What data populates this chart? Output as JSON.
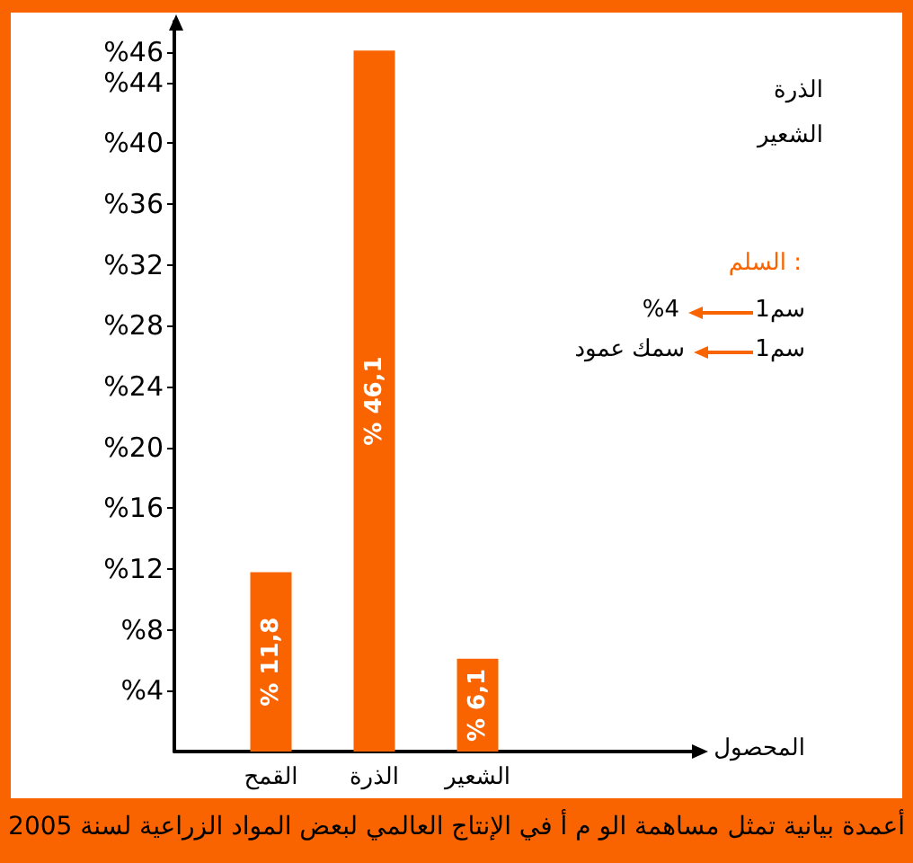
{
  "chart_data": {
    "type": "bar",
    "title": "أعمدة بيانية تمثل مساهمة الو م أ في الإنتاج العالمي لبعض المواد الزراعية لسنة 2005",
    "categories": [
      "القمح",
      "الذرة",
      "الشعير"
    ],
    "values": [
      11.8,
      46.1,
      6.1
    ],
    "value_labels": [
      "% 11,8",
      "% 46,1",
      "% 6,1"
    ],
    "color": "#f96400",
    "ylim": [
      0,
      48
    ],
    "yticks": [
      {
        "value": 4,
        "label": "%4"
      },
      {
        "value": 8,
        "label": "%8"
      },
      {
        "value": 12,
        "label": "%12"
      },
      {
        "value": 16,
        "label": "%16"
      },
      {
        "value": 20,
        "label": "%20"
      },
      {
        "value": 24,
        "label": "%24"
      },
      {
        "value": 28,
        "label": "%28"
      },
      {
        "value": 32,
        "label": "%32"
      },
      {
        "value": 36,
        "label": "%36"
      },
      {
        "value": 40,
        "label": "%40"
      },
      {
        "value": 44,
        "label": "%44"
      },
      {
        "value": 46,
        "label": "%46"
      }
    ],
    "annotations": [
      "الذرة",
      "الشعير",
      "السلم :",
      "1سم",
      "%4",
      "1سم",
      "سمك عمود",
      "المحصول"
    ]
  }
}
